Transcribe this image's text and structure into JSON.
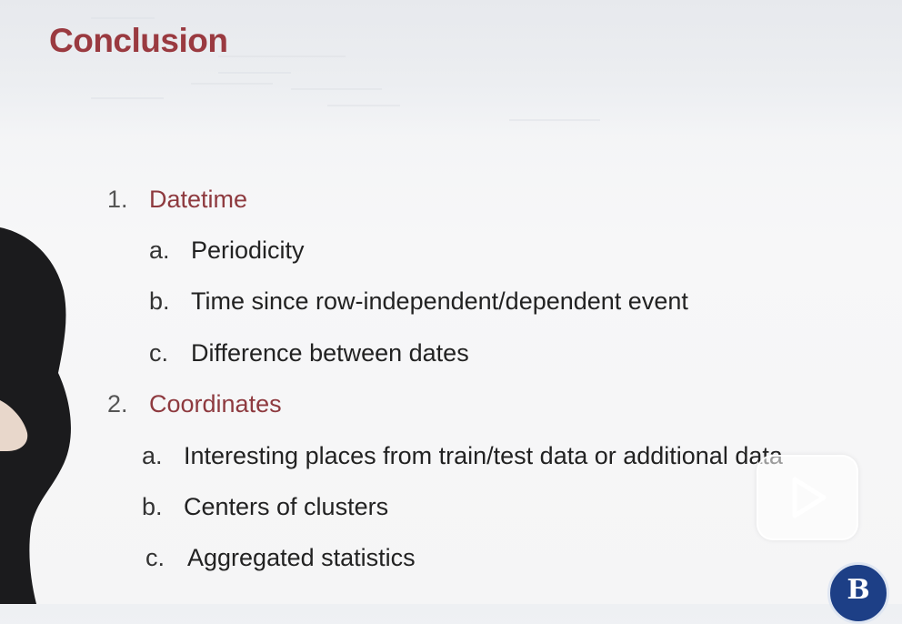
{
  "slide": {
    "title": "Conclusion",
    "items": [
      {
        "num": "1.",
        "label": "Datetime",
        "subs": [
          {
            "letter": "a.",
            "label": "Periodicity"
          },
          {
            "letter": "b.",
            "label": "Time since row-independent/dependent event"
          },
          {
            "letter": "c.",
            "label": "Difference between dates"
          }
        ]
      },
      {
        "num": "2.",
        "label": "Coordinates",
        "subs": [
          {
            "letter": "a.",
            "label": "Interesting places from train/test data or additional data"
          },
          {
            "letter": "b.",
            "label": "Centers of clusters"
          },
          {
            "letter": "c.",
            "label": "Aggregated statistics"
          }
        ]
      }
    ]
  },
  "logo": {
    "letter": "B"
  },
  "colors": {
    "title": "#9a3a40",
    "accent": "#8e3a3f",
    "logo_bg": "#1d3f86"
  }
}
